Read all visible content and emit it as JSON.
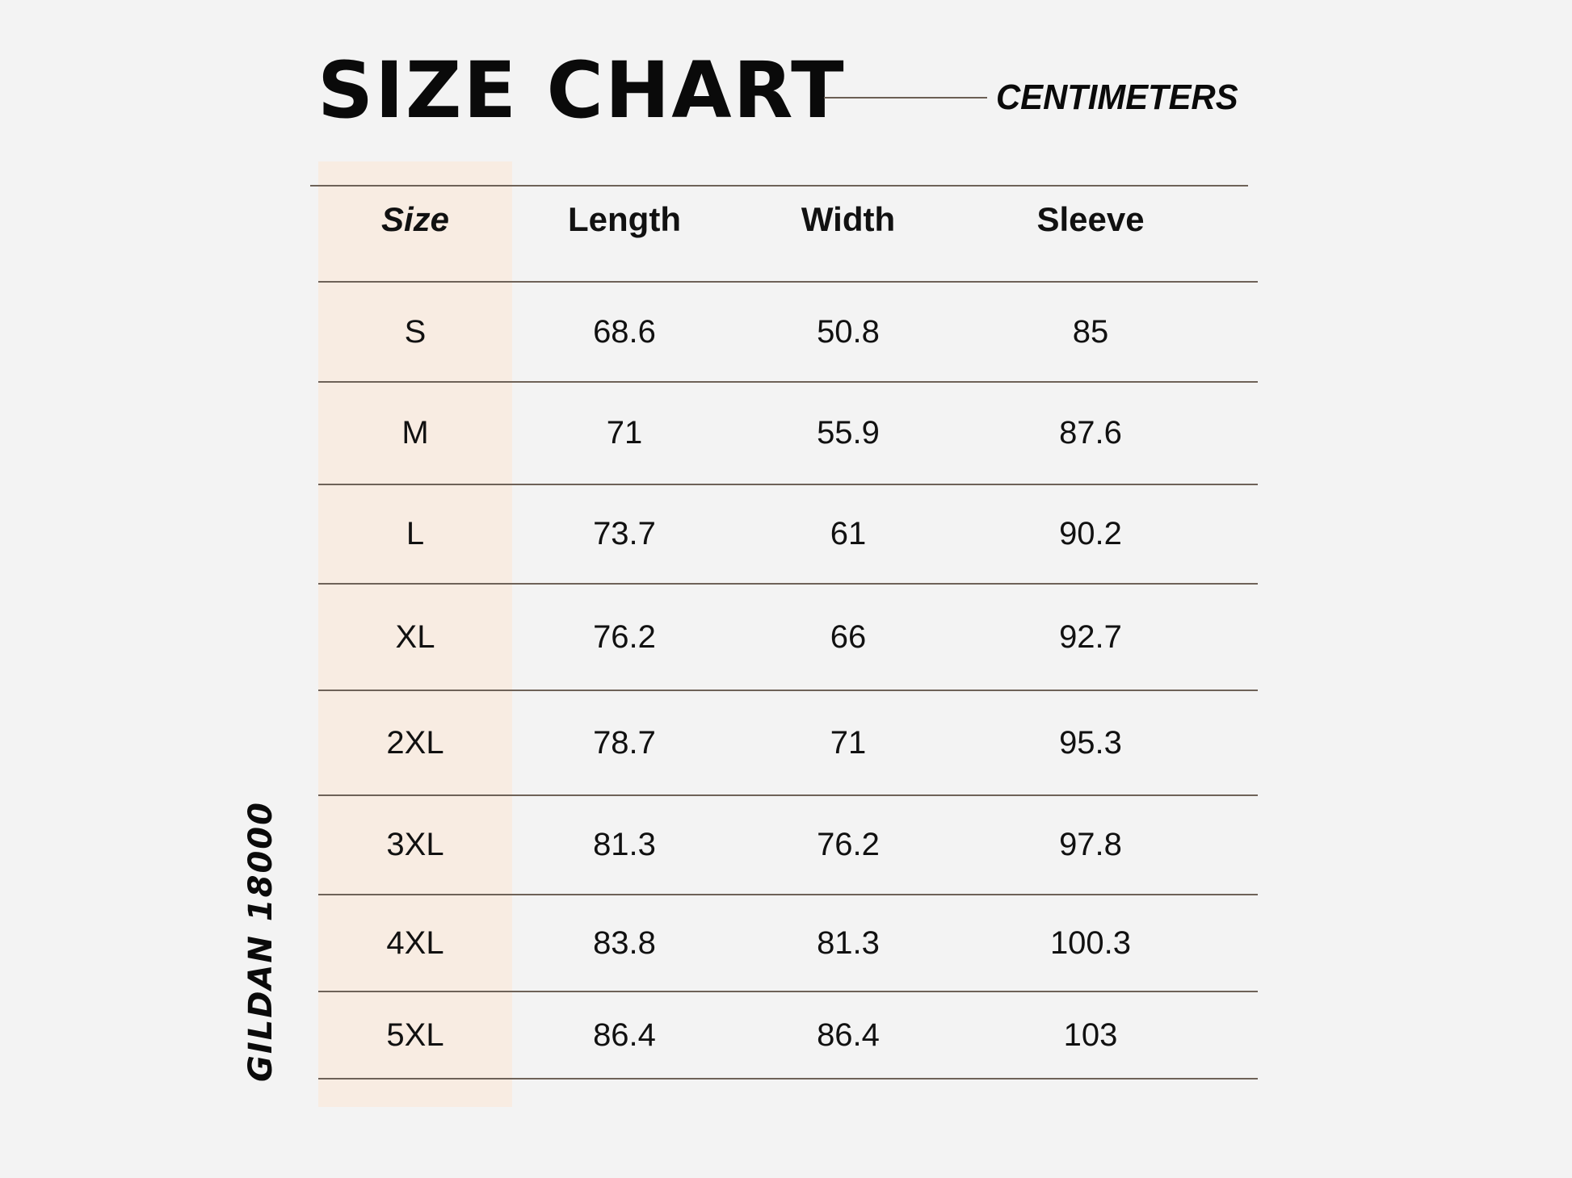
{
  "title": "SIZE CHART",
  "unit": "CENTIMETERS",
  "brand": "GILDAN 18000",
  "colors": {
    "size_column_bg": "#f8ece2",
    "rule": "#6e6258",
    "background": "#f3f3f3"
  },
  "table": {
    "headers": [
      "Size",
      "Length",
      "Width",
      "Sleeve"
    ],
    "rows": [
      [
        "S",
        "68.6",
        "50.8",
        "85"
      ],
      [
        "M",
        "71",
        "55.9",
        "87.6"
      ],
      [
        "L",
        "73.7",
        "61",
        "90.2"
      ],
      [
        "XL",
        "76.2",
        "66",
        "92.7"
      ],
      [
        "2XL",
        "78.7",
        "71",
        "95.3"
      ],
      [
        "3XL",
        "81.3",
        "76.2",
        "97.8"
      ],
      [
        "4XL",
        "83.8",
        "81.3",
        "100.3"
      ],
      [
        "5XL",
        "86.4",
        "86.4",
        "103"
      ]
    ]
  }
}
